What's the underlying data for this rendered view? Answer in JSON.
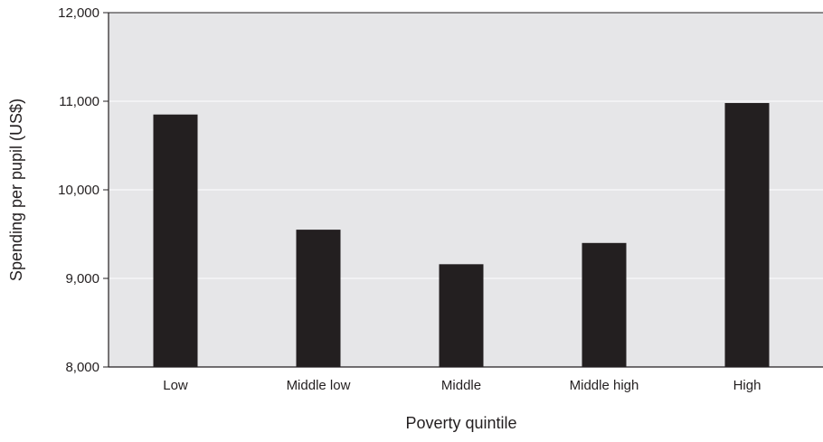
{
  "chart_data": {
    "type": "bar",
    "title": "",
    "xlabel": "Poverty quintile",
    "ylabel": "Spending per pupil  (US$)",
    "categories": [
      "Low",
      "Middle low",
      "Middle",
      "Middle high",
      "High"
    ],
    "values": [
      10850,
      9550,
      9160,
      9400,
      10980
    ],
    "ylim": [
      8000,
      12000
    ],
    "yticks": [
      8000,
      9000,
      10000,
      11000,
      12000
    ],
    "ytick_labels": [
      "8,000",
      "9,000",
      "10,000",
      "11,000",
      "12,000"
    ],
    "grid": true,
    "colors": {
      "bar": "#231f20",
      "plot_background": "#e6e6e8",
      "gridline": "#ffffff",
      "axis": "#231f20"
    }
  }
}
